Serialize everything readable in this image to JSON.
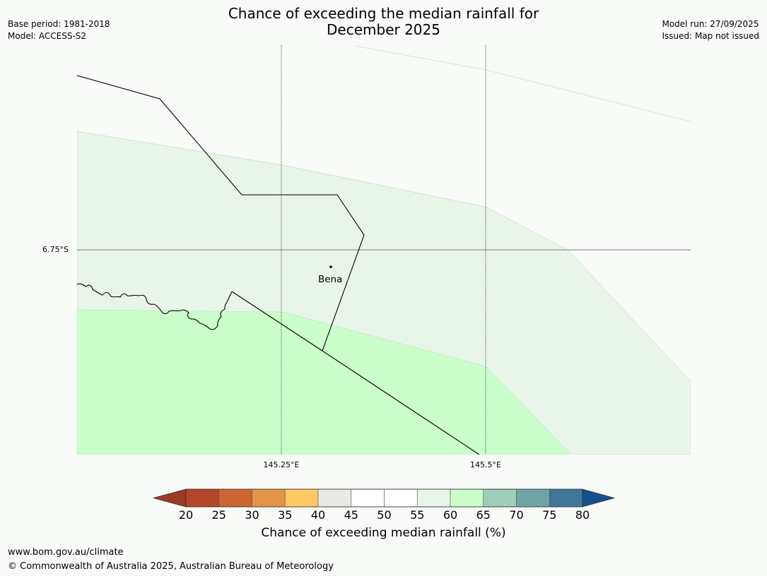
{
  "title_line1": "Chance of exceeding the median rainfall for",
  "title_line2": "December 2025",
  "meta_left": [
    "Base period: 1981-2018",
    "Model: ACCESS-S2"
  ],
  "meta_right": [
    "Model run: 27/09/2025",
    "Issued: Map not issued"
  ],
  "gridlines": {
    "latitude_label": "6.75°S",
    "longitude_labels": [
      "145.25°E",
      "145.5°E"
    ]
  },
  "place": {
    "name": "Bena"
  },
  "colorbar": {
    "title": "Chance of exceeding median rainfall (%)",
    "ticks": [
      "20",
      "25",
      "30",
      "35",
      "40",
      "45",
      "50",
      "55",
      "60",
      "65",
      "70",
      "75",
      "80"
    ],
    "colors": {
      "under": "#9c3a26",
      "bins": [
        "#b4472a",
        "#cd6532",
        "#e39446",
        "#fdc964",
        "#eae9e4",
        "#ffffff",
        "#ffffff",
        "#e9f5e9",
        "#caffcb",
        "#9dcfb8",
        "#6fa5a7",
        "#3f779a"
      ],
      "over": "#154f8c"
    }
  },
  "map_fill_colors": {
    "band_55_60": "#e9f5e9",
    "band_60_65": "#caffcb"
  },
  "footer": {
    "url": "www.bom.gov.au/climate",
    "copyright": "© Commonwealth of Australia 2025, Australian Bureau of Meteorology"
  }
}
